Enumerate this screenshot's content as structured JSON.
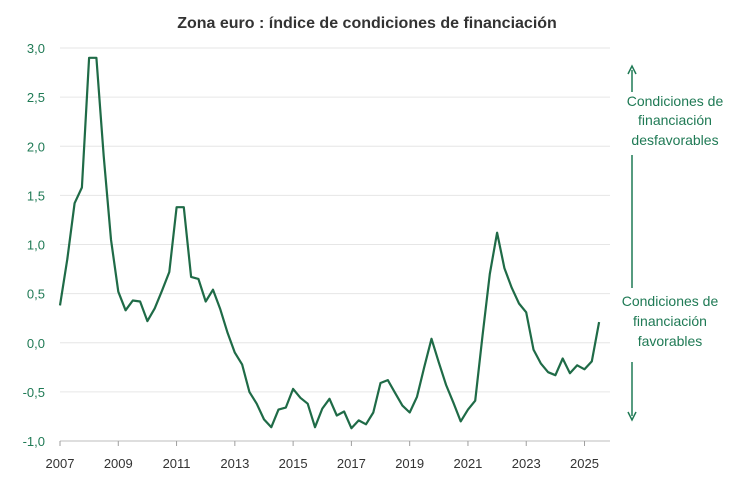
{
  "chart_data": {
    "type": "line",
    "title": "Zona euro : índice de condiciones de financiación",
    "xlabel": "",
    "ylabel": "",
    "xlim": [
      2007,
      2025.6
    ],
    "ylim": [
      -1.0,
      3.0
    ],
    "grid": true,
    "y_ticks": [
      "3,0",
      "2,5",
      "2,0",
      "1,5",
      "1,0",
      "0,5",
      "0,0",
      "-0,5",
      "-1,0"
    ],
    "y_tick_values": [
      3.0,
      2.5,
      2.0,
      1.5,
      1.0,
      0.5,
      0.0,
      -0.5,
      -1.0
    ],
    "x_ticks": [
      "2007",
      "2009",
      "2011",
      "2013",
      "2015",
      "2017",
      "2019",
      "2021",
      "2023",
      "2025"
    ],
    "x_tick_values": [
      2007,
      2009,
      2011,
      2013,
      2015,
      2017,
      2019,
      2021,
      2023,
      2025
    ],
    "series": [
      {
        "color": "#1f6b47",
        "x": [
          2007.0,
          2007.25,
          2007.5,
          2007.75,
          2008.0,
          2008.25,
          2008.5,
          2008.75,
          2009.0,
          2009.25,
          2009.5,
          2009.75,
          2010.0,
          2010.25,
          2010.5,
          2010.75,
          2011.0,
          2011.25,
          2011.5,
          2011.75,
          2012.0,
          2012.25,
          2012.5,
          2012.75,
          2013.0,
          2013.25,
          2013.5,
          2013.75,
          2014.0,
          2014.25,
          2014.5,
          2014.75,
          2015.0,
          2015.25,
          2015.5,
          2015.75,
          2016.0,
          2016.25,
          2016.5,
          2016.75,
          2017.0,
          2017.25,
          2017.5,
          2017.75,
          2018.0,
          2018.25,
          2018.5,
          2018.75,
          2019.0,
          2019.25,
          2019.5,
          2019.75,
          2020.0,
          2020.25,
          2020.5,
          2020.75,
          2021.0,
          2021.25,
          2021.5,
          2021.75,
          2022.0,
          2022.25,
          2022.5,
          2022.75,
          2023.0,
          2023.25,
          2023.5,
          2023.75,
          2024.0,
          2024.25,
          2024.5,
          2024.75,
          2025.0,
          2025.25,
          2025.5
        ],
        "values": [
          0.38,
          0.85,
          1.42,
          1.58,
          2.9,
          2.9,
          1.9,
          1.05,
          0.52,
          0.33,
          0.43,
          0.42,
          0.22,
          0.35,
          0.53,
          0.72,
          1.38,
          1.38,
          0.67,
          0.65,
          0.42,
          0.54,
          0.34,
          0.1,
          -0.1,
          -0.22,
          -0.5,
          -0.62,
          -0.78,
          -0.86,
          -0.68,
          -0.66,
          -0.47,
          -0.56,
          -0.62,
          -0.86,
          -0.67,
          -0.57,
          -0.74,
          -0.7,
          -0.87,
          -0.79,
          -0.83,
          -0.71,
          -0.41,
          -0.38,
          -0.51,
          -0.64,
          -0.71,
          -0.55,
          -0.25,
          0.04,
          -0.2,
          -0.43,
          -0.61,
          -0.8,
          -0.68,
          -0.59,
          0.07,
          0.7,
          1.12,
          0.76,
          0.56,
          0.4,
          0.31,
          -0.07,
          -0.21,
          -0.3,
          -0.33,
          -0.16,
          -0.31,
          -0.23,
          -0.27,
          -0.19,
          0.21
        ]
      }
    ],
    "annotations": {
      "top_lines": [
        "Condiciones de",
        "financiación",
        "desfavorables"
      ],
      "bottom_lines": [
        "Condiciones de",
        "financiación",
        "favorables"
      ]
    }
  }
}
